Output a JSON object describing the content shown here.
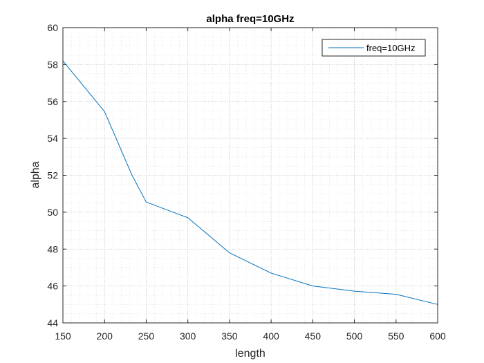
{
  "chart_data": {
    "type": "line",
    "title": "alpha freq=10GHz",
    "xlabel": "length",
    "ylabel": "alpha",
    "xlim": [
      150,
      600
    ],
    "ylim": [
      44,
      60
    ],
    "xticks": [
      150,
      200,
      250,
      300,
      350,
      400,
      450,
      500,
      550,
      600
    ],
    "yticks": [
      44,
      46,
      48,
      50,
      52,
      54,
      56,
      58,
      60
    ],
    "grid": true,
    "minor_grid": true,
    "legend_position": "top-right",
    "series": [
      {
        "name": "freq=10GHz",
        "color": "#0072BD",
        "x": [
          150,
          200,
          233,
          250,
          300,
          350,
          400,
          450,
          500,
          550,
          600
        ],
        "y": [
          58.2,
          55.45,
          52.0,
          50.55,
          49.7,
          47.8,
          46.7,
          46.0,
          45.72,
          45.55,
          45.0
        ]
      }
    ]
  }
}
